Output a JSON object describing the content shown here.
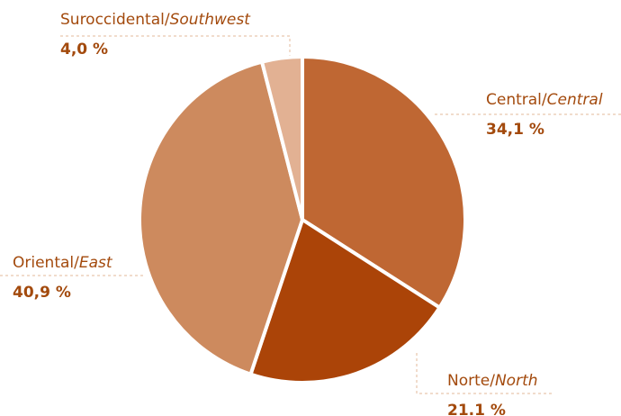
{
  "chart_data": {
    "type": "pie",
    "categories": [
      "Central/Central",
      "Norte/North",
      "Oriental/East",
      "Suroccidental/Southwest"
    ],
    "values": [
      34.1,
      21.1,
      40.9,
      4.0
    ],
    "value_labels": [
      "34,1 %",
      "21.1 %",
      "40,9 %",
      "4,0 %"
    ],
    "colors": [
      "#bf6733",
      "#ab4408",
      "#cd8a5e",
      "#e2b193"
    ]
  }
}
